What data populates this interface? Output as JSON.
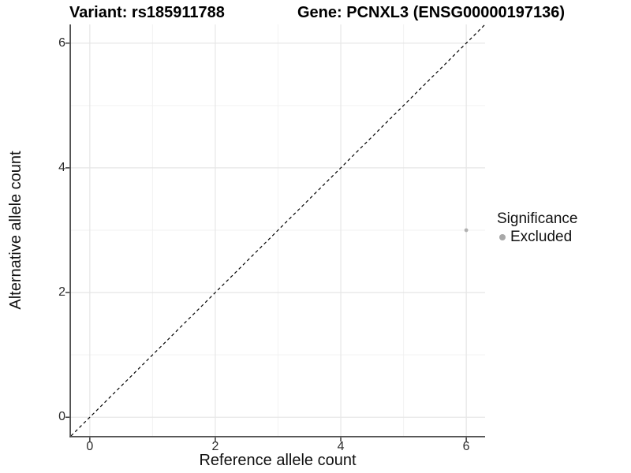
{
  "titles": {
    "variant": "Variant: rs185911788",
    "gene": "Gene: PCNXL3 (ENSG00000197136)"
  },
  "legend": {
    "title": "Significance",
    "items": [
      {
        "label": "Excluded",
        "color": "#a8a8a8"
      }
    ]
  },
  "chart_data": {
    "type": "scatter",
    "title": "Variant: rs185911788   Gene: PCNXL3 (ENSG00000197136)",
    "xlabel": "Reference allele count",
    "ylabel": "Alternative allele count",
    "xlim": [
      -0.3,
      6.3
    ],
    "ylim": [
      -0.3,
      6.3
    ],
    "x_major_ticks": [
      0,
      2,
      4,
      6
    ],
    "y_major_ticks": [
      0,
      2,
      4,
      6
    ],
    "x_minor_ticks": [
      1,
      3,
      5
    ],
    "y_minor_ticks": [
      1,
      3,
      5
    ],
    "grid": "on",
    "legend_position": "right",
    "series": [
      {
        "name": "Excluded",
        "color": "#b0b0b0",
        "points": [
          {
            "x": 6,
            "y": 3
          }
        ]
      }
    ],
    "reference_line": {
      "type": "identity",
      "slope": 1,
      "intercept": 0,
      "style": "dashed",
      "color": "#000000"
    }
  },
  "colors": {
    "background": "#ffffff",
    "grid_major": "#e6e6e6",
    "grid_minor": "#f2f2f2",
    "axis_line": "#4f4f4f",
    "tick_mark": "#3a3a3a",
    "point": "#b0b0b0",
    "reference_line": "#000000"
  }
}
